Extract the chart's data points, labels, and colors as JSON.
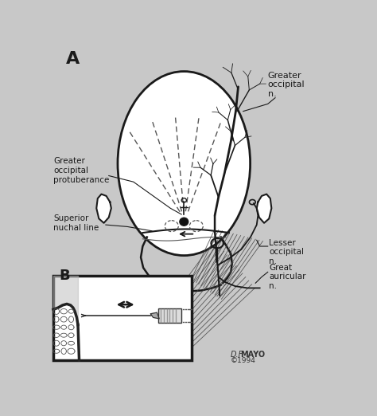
{
  "bg_color": "#c8c8c8",
  "white": "#ffffff",
  "black": "#1a1a1a",
  "gray": "#666666",
  "light_gray": "#e8e8e8",
  "labels": {
    "A": "A",
    "B": "B",
    "greater_occipital": "Greater\noccipital\nn.",
    "greater_occipital_prot": "Greater\noccipital\nprotuberance",
    "superior_nuchal": "Superior\nnuchal line",
    "lesser_occipital": "Lesser\noccipital\nn.",
    "great_auricular": "Great\nauricular\nn.",
    "mayo": "D.F."
  }
}
